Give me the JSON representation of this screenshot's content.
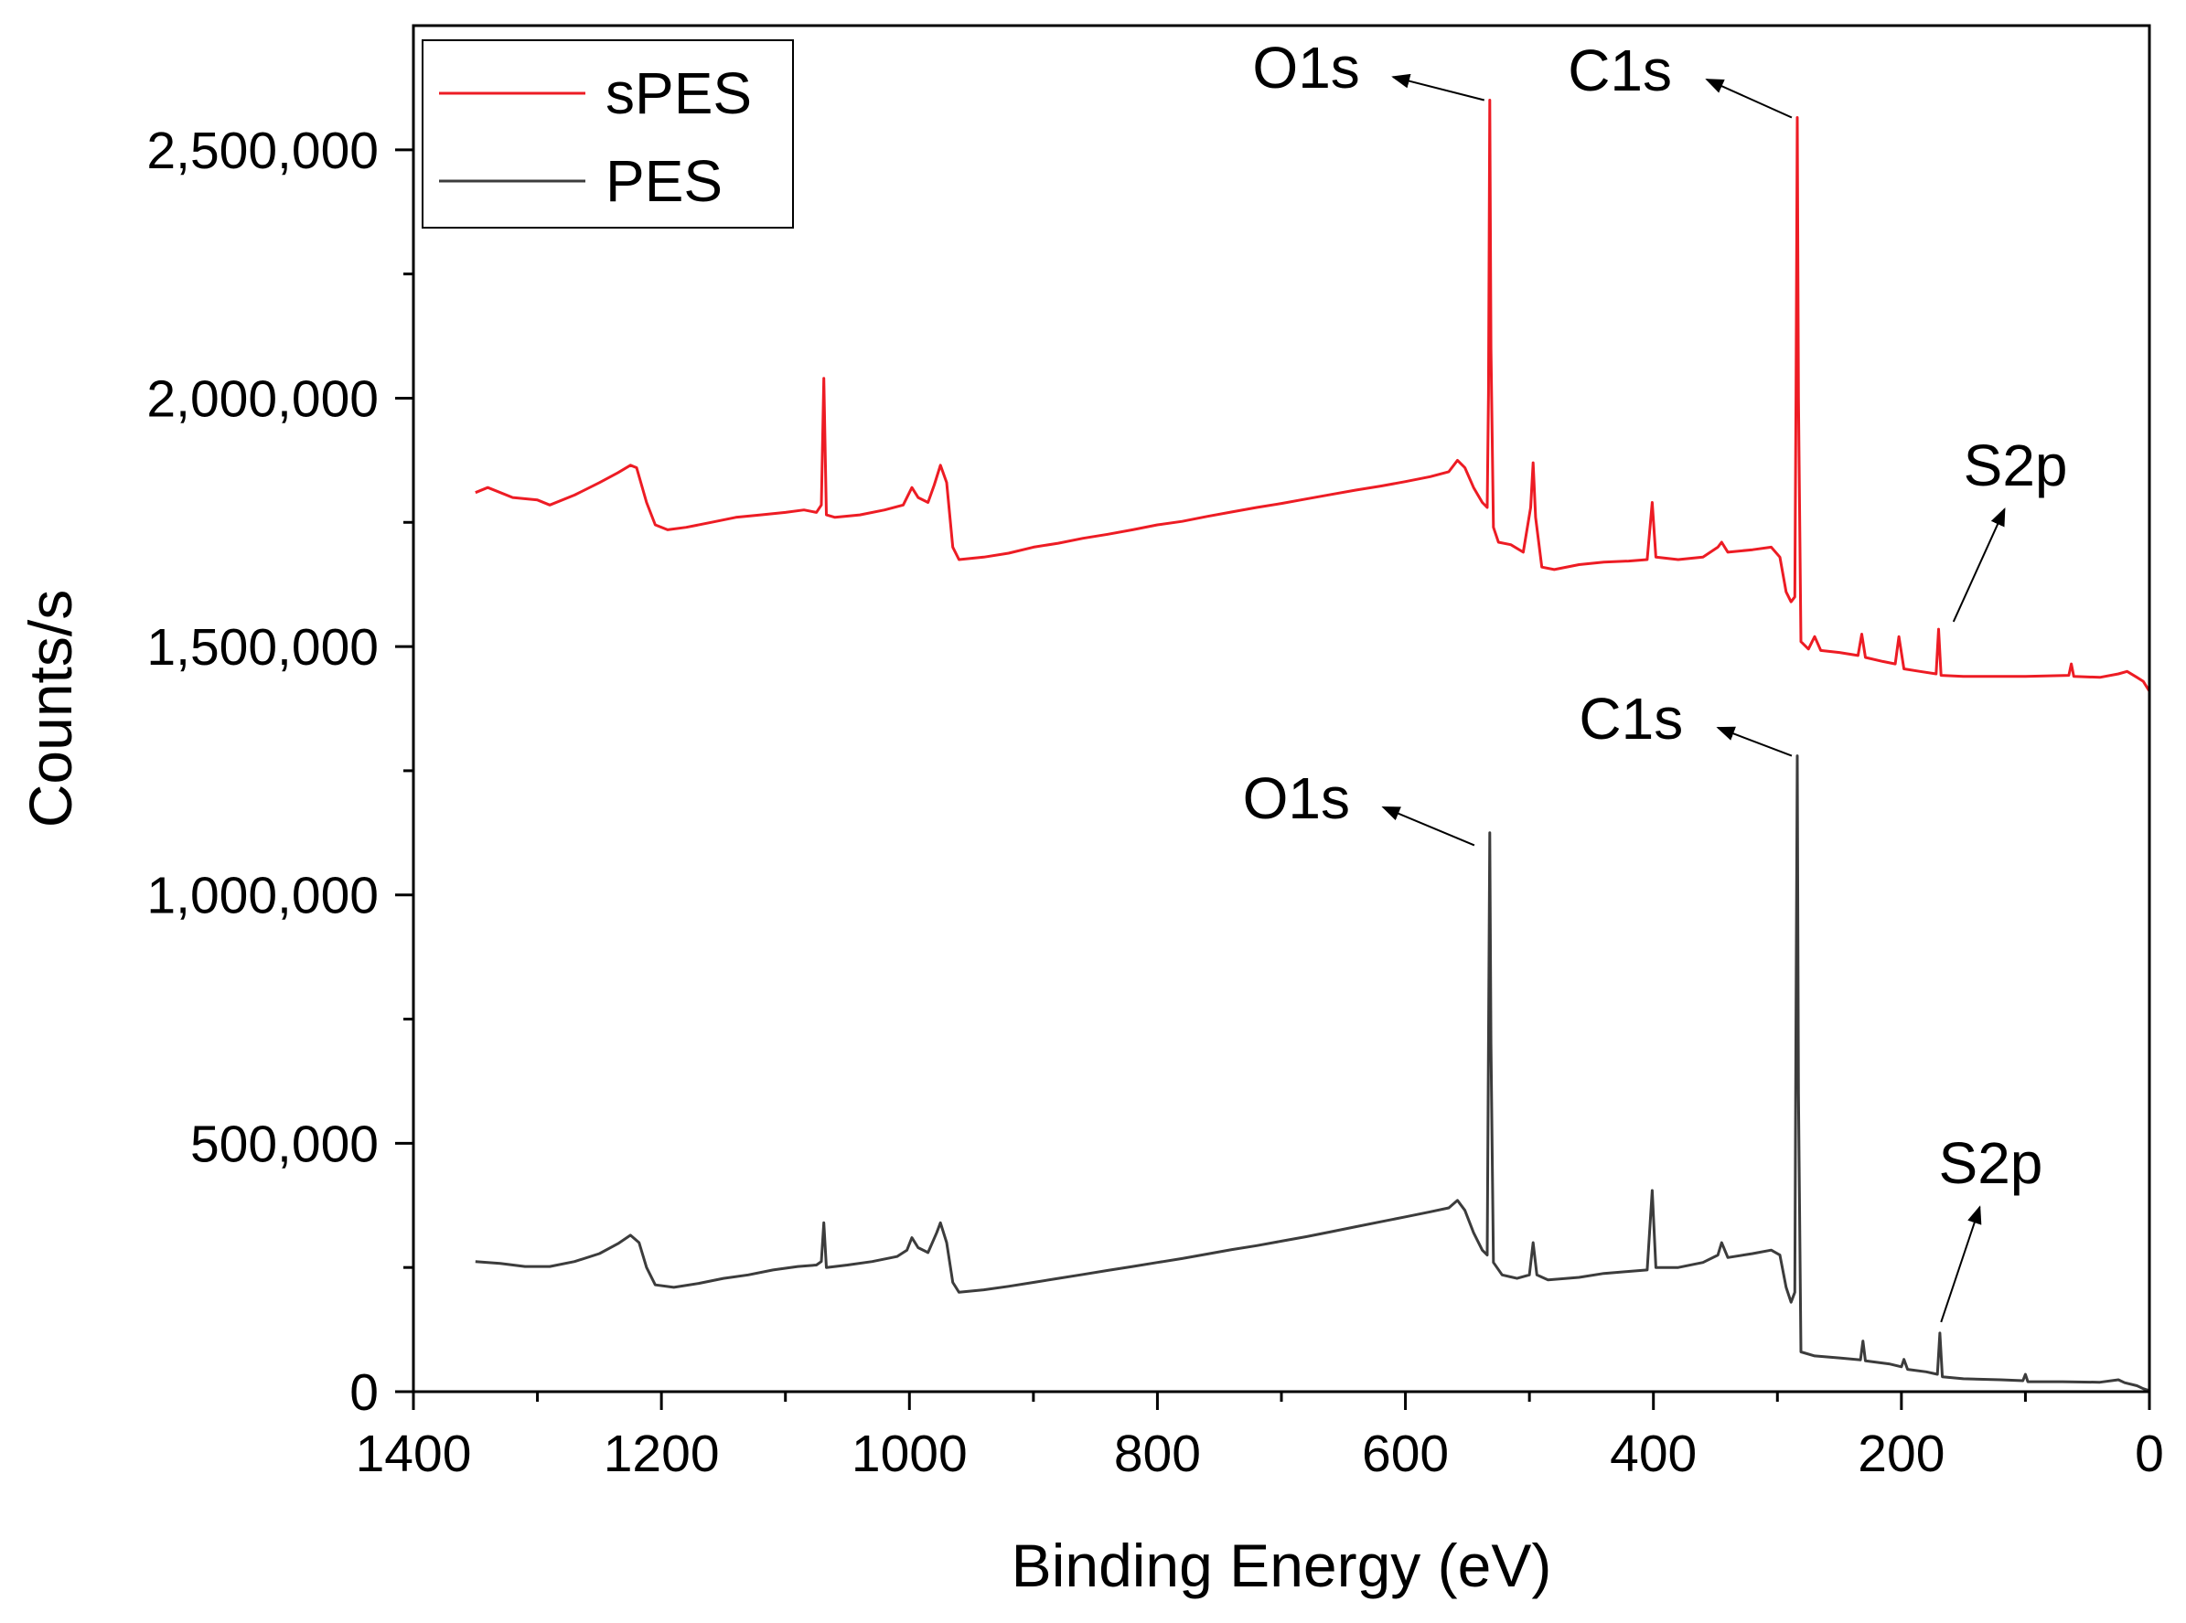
{
  "chart_data": {
    "type": "line",
    "title": "",
    "xlabel": "Binding Energy (eV)",
    "ylabel": "Counts/s",
    "xlim": [
      1400,
      0
    ],
    "ylim": [
      0,
      2750000
    ],
    "x_ticks": [
      1400,
      1200,
      1000,
      800,
      600,
      400,
      200,
      0
    ],
    "x_tick_labels": [
      "1400",
      "1200",
      "1000",
      "800",
      "600",
      "400",
      "200",
      "0"
    ],
    "y_ticks": [
      0,
      500000,
      1000000,
      1500000,
      2000000,
      2500000
    ],
    "y_tick_labels": [
      "0",
      "500,000",
      "1,000,000",
      "1,500,000",
      "2,000,000",
      "2,500,000"
    ],
    "legend": {
      "position": "top-left",
      "entries": [
        "sPES",
        "PES"
      ]
    },
    "series": [
      {
        "name": "sPES",
        "color": "#ed1c24",
        "points": [
          [
            1350,
            1810000
          ],
          [
            1340,
            1820000
          ],
          [
            1320,
            1800000
          ],
          [
            1300,
            1795000
          ],
          [
            1290,
            1785000
          ],
          [
            1270,
            1805000
          ],
          [
            1250,
            1830000
          ],
          [
            1235,
            1850000
          ],
          [
            1225,
            1865000
          ],
          [
            1220,
            1860000
          ],
          [
            1212,
            1790000
          ],
          [
            1205,
            1745000
          ],
          [
            1195,
            1735000
          ],
          [
            1180,
            1740000
          ],
          [
            1160,
            1750000
          ],
          [
            1140,
            1760000
          ],
          [
            1120,
            1765000
          ],
          [
            1100,
            1770000
          ],
          [
            1085,
            1775000
          ],
          [
            1075,
            1770000
          ],
          [
            1071,
            1785000
          ],
          [
            1069,
            2040000
          ],
          [
            1067,
            1765000
          ],
          [
            1060,
            1760000
          ],
          [
            1040,
            1765000
          ],
          [
            1020,
            1775000
          ],
          [
            1005,
            1785000
          ],
          [
            998,
            1820000
          ],
          [
            993,
            1800000
          ],
          [
            985,
            1790000
          ],
          [
            980,
            1825000
          ],
          [
            975,
            1865000
          ],
          [
            970,
            1830000
          ],
          [
            965,
            1700000
          ],
          [
            960,
            1675000
          ],
          [
            940,
            1680000
          ],
          [
            920,
            1688000
          ],
          [
            900,
            1700000
          ],
          [
            880,
            1708000
          ],
          [
            860,
            1718000
          ],
          [
            840,
            1726000
          ],
          [
            820,
            1735000
          ],
          [
            800,
            1745000
          ],
          [
            780,
            1752000
          ],
          [
            760,
            1762000
          ],
          [
            740,
            1771000
          ],
          [
            720,
            1780000
          ],
          [
            700,
            1788000
          ],
          [
            680,
            1797000
          ],
          [
            660,
            1806000
          ],
          [
            640,
            1815000
          ],
          [
            620,
            1823000
          ],
          [
            600,
            1832000
          ],
          [
            580,
            1842000
          ],
          [
            565,
            1852000
          ],
          [
            558,
            1875000
          ],
          [
            552,
            1860000
          ],
          [
            545,
            1820000
          ],
          [
            538,
            1790000
          ],
          [
            534,
            1780000
          ],
          [
            533,
            2010000
          ],
          [
            532,
            2600000
          ],
          [
            531,
            2100000
          ],
          [
            529,
            1740000
          ],
          [
            525,
            1710000
          ],
          [
            515,
            1705000
          ],
          [
            505,
            1690000
          ],
          [
            499,
            1780000
          ],
          [
            497,
            1870000
          ],
          [
            495,
            1760000
          ],
          [
            490,
            1660000
          ],
          [
            480,
            1655000
          ],
          [
            460,
            1665000
          ],
          [
            440,
            1670000
          ],
          [
            420,
            1672000
          ],
          [
            405,
            1675000
          ],
          [
            401,
            1790000
          ],
          [
            398,
            1680000
          ],
          [
            380,
            1675000
          ],
          [
            360,
            1680000
          ],
          [
            348,
            1700000
          ],
          [
            345,
            1710000
          ],
          [
            340,
            1690000
          ],
          [
            320,
            1695000
          ],
          [
            305,
            1700000
          ],
          [
            298,
            1680000
          ],
          [
            293,
            1610000
          ],
          [
            289,
            1590000
          ],
          [
            286,
            1600000
          ],
          [
            285,
            2000000
          ],
          [
            284,
            2565000
          ],
          [
            283,
            2000000
          ],
          [
            281,
            1510000
          ],
          [
            275,
            1495000
          ],
          [
            270,
            1520000
          ],
          [
            265,
            1492000
          ],
          [
            250,
            1488000
          ],
          [
            235,
            1482000
          ],
          [
            232,
            1525000
          ],
          [
            229,
            1478000
          ],
          [
            215,
            1470000
          ],
          [
            205,
            1465000
          ],
          [
            202,
            1520000
          ],
          [
            198,
            1455000
          ],
          [
            185,
            1450000
          ],
          [
            172,
            1445000
          ],
          [
            170,
            1535000
          ],
          [
            168,
            1442000
          ],
          [
            150,
            1440000
          ],
          [
            120,
            1440000
          ],
          [
            100,
            1440000
          ],
          [
            65,
            1442000
          ],
          [
            63,
            1465000
          ],
          [
            61,
            1440000
          ],
          [
            40,
            1438000
          ],
          [
            25,
            1445000
          ],
          [
            18,
            1450000
          ],
          [
            10,
            1438000
          ],
          [
            5,
            1430000
          ],
          [
            0,
            1410000
          ]
        ]
      },
      {
        "name": "PES",
        "color": "#3c3c3c",
        "points": [
          [
            1350,
            262000
          ],
          [
            1330,
            258000
          ],
          [
            1310,
            252000
          ],
          [
            1290,
            252000
          ],
          [
            1270,
            262000
          ],
          [
            1250,
            278000
          ],
          [
            1235,
            298000
          ],
          [
            1225,
            315000
          ],
          [
            1218,
            300000
          ],
          [
            1212,
            250000
          ],
          [
            1205,
            215000
          ],
          [
            1190,
            210000
          ],
          [
            1170,
            218000
          ],
          [
            1150,
            228000
          ],
          [
            1130,
            235000
          ],
          [
            1110,
            245000
          ],
          [
            1090,
            252000
          ],
          [
            1075,
            255000
          ],
          [
            1071,
            262000
          ],
          [
            1069,
            340000
          ],
          [
            1067,
            250000
          ],
          [
            1050,
            255000
          ],
          [
            1030,
            262000
          ],
          [
            1010,
            272000
          ],
          [
            1002,
            285000
          ],
          [
            998,
            310000
          ],
          [
            993,
            290000
          ],
          [
            985,
            280000
          ],
          [
            978,
            320000
          ],
          [
            975,
            340000
          ],
          [
            970,
            300000
          ],
          [
            965,
            220000
          ],
          [
            960,
            200000
          ],
          [
            940,
            205000
          ],
          [
            920,
            212000
          ],
          [
            900,
            220000
          ],
          [
            880,
            228000
          ],
          [
            860,
            236000
          ],
          [
            840,
            244000
          ],
          [
            820,
            252000
          ],
          [
            800,
            260000
          ],
          [
            780,
            268000
          ],
          [
            760,
            277000
          ],
          [
            740,
            286000
          ],
          [
            720,
            294000
          ],
          [
            700,
            303000
          ],
          [
            680,
            312000
          ],
          [
            660,
            322000
          ],
          [
            640,
            332000
          ],
          [
            620,
            342000
          ],
          [
            600,
            352000
          ],
          [
            580,
            362000
          ],
          [
            565,
            370000
          ],
          [
            558,
            385000
          ],
          [
            552,
            365000
          ],
          [
            545,
            320000
          ],
          [
            538,
            285000
          ],
          [
            534,
            275000
          ],
          [
            533,
            700000
          ],
          [
            532,
            1125000
          ],
          [
            531,
            700000
          ],
          [
            529,
            260000
          ],
          [
            522,
            235000
          ],
          [
            510,
            228000
          ],
          [
            500,
            235000
          ],
          [
            497,
            300000
          ],
          [
            494,
            235000
          ],
          [
            485,
            225000
          ],
          [
            460,
            230000
          ],
          [
            440,
            238000
          ],
          [
            420,
            242000
          ],
          [
            405,
            245000
          ],
          [
            401,
            405000
          ],
          [
            398,
            250000
          ],
          [
            380,
            250000
          ],
          [
            360,
            260000
          ],
          [
            348,
            275000
          ],
          [
            345,
            300000
          ],
          [
            340,
            270000
          ],
          [
            320,
            278000
          ],
          [
            305,
            285000
          ],
          [
            298,
            275000
          ],
          [
            293,
            210000
          ],
          [
            289,
            180000
          ],
          [
            286,
            200000
          ],
          [
            285,
            750000
          ],
          [
            284,
            1280000
          ],
          [
            283,
            600000
          ],
          [
            281,
            80000
          ],
          [
            270,
            72000
          ],
          [
            250,
            68000
          ],
          [
            233,
            64000
          ],
          [
            231,
            102000
          ],
          [
            229,
            62000
          ],
          [
            210,
            56000
          ],
          [
            200,
            50000
          ],
          [
            198,
            65000
          ],
          [
            195,
            45000
          ],
          [
            180,
            40000
          ],
          [
            171,
            35000
          ],
          [
            169,
            118000
          ],
          [
            167,
            30000
          ],
          [
            150,
            26000
          ],
          [
            120,
            24000
          ],
          [
            102,
            22000
          ],
          [
            100,
            35000
          ],
          [
            98,
            20000
          ],
          [
            70,
            20000
          ],
          [
            40,
            19000
          ],
          [
            25,
            24000
          ],
          [
            20,
            18000
          ],
          [
            10,
            12000
          ],
          [
            5,
            6000
          ],
          [
            0,
            2000
          ]
        ]
      }
    ],
    "annotations": [
      {
        "text": "O1s",
        "series": "sPES",
        "peak": [
          532,
          2600000
        ],
        "label_at": [
          680,
          2665000
        ]
      },
      {
        "text": "C1s",
        "series": "sPES",
        "peak": [
          284,
          2565000
        ],
        "label_at": [
          427,
          2660000
        ]
      },
      {
        "text": "S2p",
        "series": "sPES",
        "peak": [
          158,
          1550000
        ],
        "label_at": [
          108,
          1865000
        ]
      },
      {
        "text": "C1s",
        "series": "PES",
        "peak": [
          284,
          1280000
        ],
        "label_at": [
          418,
          1355000
        ]
      },
      {
        "text": "O1s",
        "series": "PES",
        "peak": [
          540,
          1100000
        ],
        "label_at": [
          688,
          1195000
        ]
      },
      {
        "text": "S2p",
        "series": "PES",
        "peak": [
          168,
          140000
        ],
        "label_at": [
          128,
          460000
        ]
      }
    ]
  }
}
